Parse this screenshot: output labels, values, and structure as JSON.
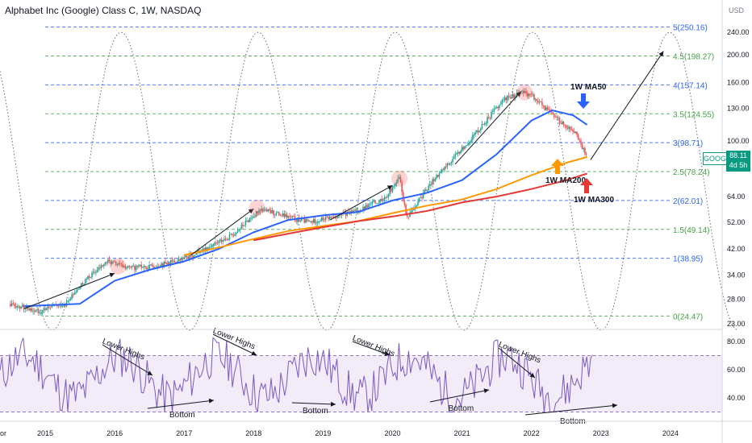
{
  "header": {
    "title": "Alphabet Inc (Google) Class C, 1W, NASDAQ"
  },
  "price_axis": {
    "currency": "USD"
  },
  "last_price": {
    "ticker": "GOOG",
    "price": "88.11",
    "time_left": "4d 5h"
  },
  "colors": {
    "ma50": "#2962ff",
    "ma200": "#ff9800",
    "ma300": "#e53935",
    "rsi": "#7e57c2",
    "fib": "#2962ff",
    "up": "#26a69a",
    "down": "#ef5350"
  },
  "chart_data": [
    {
      "type": "line",
      "panel": "price",
      "scale": "log",
      "x_axis_labels": [
        "2015",
        "2016",
        "2017",
        "2018",
        "2019",
        "2020",
        "2021",
        "2022",
        "2023",
        "2024"
      ],
      "x_axis_partial_label": "or",
      "y_axis_labels": [
        240,
        200,
        160,
        130,
        100,
        81,
        64,
        52,
        42,
        34,
        28,
        23
      ],
      "fib_levels": [
        {
          "label": "5(250.16)",
          "value": 250.16
        },
        {
          "label": "4.5(198.27)",
          "value": 198.27
        },
        {
          "label": "4(157.14)",
          "value": 157.14
        },
        {
          "label": "3.5(124.55)",
          "value": 124.55
        },
        {
          "label": "3(98.71)",
          "value": 98.71
        },
        {
          "label": "2.5(78.24)",
          "value": 78.24
        },
        {
          "label": "2(62.01)",
          "value": 62.01
        },
        {
          "label": "1.5(49.14)",
          "value": 49.14
        },
        {
          "label": "1(38.95)",
          "value": 38.95
        },
        {
          "label": "0(24.47)",
          "value": 24.47
        }
      ],
      "series": [
        {
          "name": "1W MA50",
          "points": [
            [
              2014.7,
              26.5
            ],
            [
              2015.5,
              27
            ],
            [
              2016.0,
              32.5
            ],
            [
              2016.5,
              35.5
            ],
            [
              2017.0,
              38
            ],
            [
              2017.5,
              42
            ],
            [
              2018.0,
              48
            ],
            [
              2018.5,
              53
            ],
            [
              2019.0,
              55
            ],
            [
              2019.5,
              56.5
            ],
            [
              2020.0,
              62
            ],
            [
              2020.5,
              66
            ],
            [
              2021.0,
              73
            ],
            [
              2021.5,
              90
            ],
            [
              2022.0,
              118
            ],
            [
              2022.3,
              128
            ],
            [
              2022.6,
              123
            ],
            [
              2022.8,
              114
            ]
          ]
        },
        {
          "name": "1W MA200",
          "points": [
            [
              2017.0,
              40
            ],
            [
              2017.5,
              42.5
            ],
            [
              2018.0,
              45.5
            ],
            [
              2018.5,
              48.5
            ],
            [
              2019.0,
              50.5
            ],
            [
              2019.5,
              52.5
            ],
            [
              2020.0,
              56
            ],
            [
              2020.5,
              59.5
            ],
            [
              2021.0,
              62.5
            ],
            [
              2021.5,
              68
            ],
            [
              2022.0,
              76
            ],
            [
              2022.5,
              84
            ],
            [
              2022.8,
              88
            ]
          ]
        },
        {
          "name": "1W MA300",
          "points": [
            [
              2018.0,
              45
            ],
            [
              2018.5,
              47.5
            ],
            [
              2019.0,
              50
            ],
            [
              2019.5,
              52.5
            ],
            [
              2020.0,
              54.5
            ],
            [
              2020.5,
              57
            ],
            [
              2021.0,
              61
            ],
            [
              2021.5,
              64
            ],
            [
              2022.0,
              68
            ],
            [
              2022.5,
              73
            ],
            [
              2022.8,
              77
            ]
          ]
        },
        {
          "name": "price",
          "points": [
            [
              2014.5,
              27
            ],
            [
              2014.9,
              25.5
            ],
            [
              2015.3,
              27
            ],
            [
              2015.6,
              33
            ],
            [
              2015.9,
              38
            ],
            [
              2016.2,
              36
            ],
            [
              2016.5,
              36.5
            ],
            [
              2016.9,
              38
            ],
            [
              2017.3,
              42
            ],
            [
              2017.7,
              47
            ],
            [
              2018.1,
              58
            ],
            [
              2018.4,
              55
            ],
            [
              2018.8,
              52
            ],
            [
              2019.1,
              54
            ],
            [
              2019.5,
              57
            ],
            [
              2019.9,
              64
            ],
            [
              2020.1,
              74
            ],
            [
              2020.2,
              54
            ],
            [
              2020.6,
              74
            ],
            [
              2020.9,
              88
            ],
            [
              2021.3,
              114
            ],
            [
              2021.6,
              140
            ],
            [
              2021.85,
              148
            ],
            [
              2022.0,
              145
            ],
            [
              2022.2,
              130
            ],
            [
              2022.45,
              115
            ],
            [
              2022.6,
              110
            ],
            [
              2022.8,
              88.11
            ]
          ]
        }
      ]
    },
    {
      "type": "line",
      "panel": "rsi",
      "y_axis_labels": [
        80,
        60,
        40
      ],
      "band": [
        30,
        70
      ]
    }
  ],
  "annotations": {
    "ma50": "1W MA50",
    "ma200": "1W MA200",
    "ma300": "1W MA300",
    "lower_highs": "Lower Highs",
    "bottom": "Bottom"
  }
}
